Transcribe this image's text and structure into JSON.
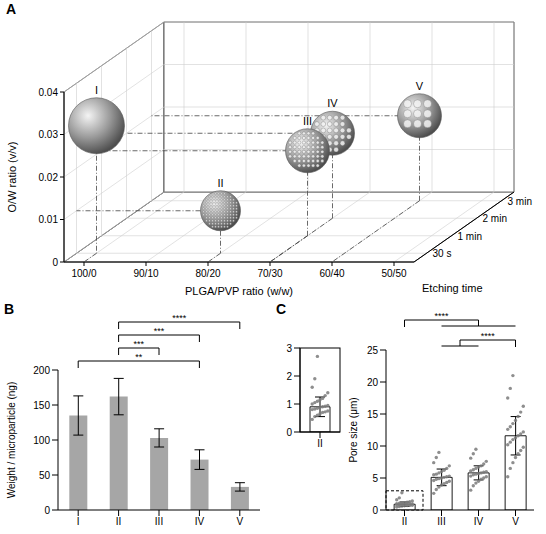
{
  "chart_data": [
    {
      "panel": "A",
      "type": "scatter3d",
      "x_label": "PLGA/PVP ratio (w/w)",
      "y_label": "O/W ratio (v/v)",
      "z_label": "Etching time",
      "x_categories": [
        "100/0",
        "90/10",
        "80/20",
        "70/30",
        "60/40",
        "50/50"
      ],
      "z_categories": [
        "30 s",
        "1 min",
        "2 min",
        "3 min"
      ],
      "ylim": [
        0,
        0.04
      ],
      "yticks": [
        0,
        0.01,
        0.02,
        0.03,
        0.04
      ],
      "grid": true,
      "points": [
        {
          "label": "I",
          "x": "100/0",
          "y": 0.03,
          "z": "30 s"
        },
        {
          "label": "II",
          "x": "80/20",
          "y": 0.01,
          "z": "30 s"
        },
        {
          "label": "III",
          "x": "70/30",
          "y": 0.02,
          "z": "1 min"
        },
        {
          "label": "IV",
          "x": "70/30",
          "y": 0.02,
          "z": "2 min"
        },
        {
          "label": "V",
          "x": "60/40",
          "y": 0.02,
          "z": "3 min"
        }
      ]
    },
    {
      "panel": "B",
      "type": "bar",
      "categories": [
        "I",
        "II",
        "III",
        "IV",
        "V"
      ],
      "values": [
        135,
        162,
        103,
        72,
        33
      ],
      "errors": [
        28,
        26,
        13,
        14,
        6
      ],
      "y_label": "Weight / microparticle (ng)",
      "ylim": [
        0,
        200
      ],
      "yticks": [
        0,
        50,
        100,
        150,
        200
      ],
      "color": "#a6a6a6",
      "grid": false,
      "significance": [
        {
          "from": [
            "II"
          ],
          "to": [
            "V"
          ],
          "label": "****"
        },
        {
          "from": [
            "II"
          ],
          "to": [
            "IV"
          ],
          "label": "***"
        },
        {
          "from": [
            "II"
          ],
          "to": [
            "III"
          ],
          "label": "***"
        },
        {
          "from": [
            "I"
          ],
          "to": [
            "IV"
          ],
          "label": "**"
        }
      ]
    },
    {
      "panel": "C",
      "type": "bar",
      "categories": [
        "II",
        "III",
        "IV",
        "V"
      ],
      "values": [
        0.9,
        5.1,
        5.8,
        11.6
      ],
      "errors": [
        0.35,
        1.3,
        1.1,
        3.0
      ],
      "points": [
        [
          0.45,
          0.55,
          0.6,
          0.65,
          0.7,
          0.72,
          0.75,
          0.8,
          0.82,
          0.85,
          0.88,
          0.9,
          0.92,
          0.95,
          1.0,
          1.05,
          1.1,
          1.15,
          1.2,
          1.3,
          1.4,
          1.6,
          1.9,
          2.7
        ],
        [
          2.6,
          3.2,
          3.6,
          3.9,
          4.1,
          4.3,
          4.5,
          4.6,
          4.8,
          4.9,
          5.0,
          5.1,
          5.2,
          5.3,
          5.5,
          5.6,
          5.8,
          6.0,
          6.2,
          6.5,
          6.9,
          7.4,
          8.2,
          9.0
        ],
        [
          3.1,
          3.8,
          4.2,
          4.5,
          4.8,
          5.0,
          5.2,
          5.3,
          5.5,
          5.6,
          5.7,
          5.8,
          5.9,
          6.0,
          6.1,
          6.3,
          6.5,
          6.7,
          6.9,
          7.2,
          7.6,
          8.1,
          8.8,
          9.5
        ],
        [
          5.2,
          6.5,
          7.4,
          8.2,
          8.8,
          9.3,
          9.8,
          10.2,
          10.6,
          11.0,
          11.3,
          11.6,
          11.9,
          12.2,
          12.6,
          13.0,
          13.5,
          14.0,
          14.6,
          15.3,
          16.2,
          17.5,
          19.0,
          21.0
        ]
      ],
      "y_label": "Pore size (μm)",
      "ylim": [
        0,
        25
      ],
      "yticks": [
        0,
        5,
        10,
        15,
        20,
        25
      ],
      "color": "#ffffff",
      "grid": false,
      "significance": [
        {
          "from": [
            "II"
          ],
          "to": [
            "III",
            "IV",
            "V"
          ],
          "label": "****"
        },
        {
          "from": [
            "III",
            "IV"
          ],
          "to": [
            "V"
          ],
          "label": "****"
        }
      ],
      "inset": {
        "type": "bar",
        "categories": [
          "II"
        ],
        "values": [
          0.9
        ],
        "errors": [
          0.35
        ],
        "points": [
          [
            0.45,
            0.55,
            0.6,
            0.65,
            0.7,
            0.72,
            0.75,
            0.8,
            0.82,
            0.85,
            0.88,
            0.9,
            0.92,
            0.95,
            1.0,
            1.05,
            1.1,
            1.15,
            1.2,
            1.3,
            1.4,
            1.6,
            1.9,
            2.7
          ]
        ],
        "ylim": [
          0,
          3
        ],
        "yticks": [
          0,
          1,
          2,
          3
        ],
        "color": "#ffffff",
        "grid": false
      }
    }
  ]
}
